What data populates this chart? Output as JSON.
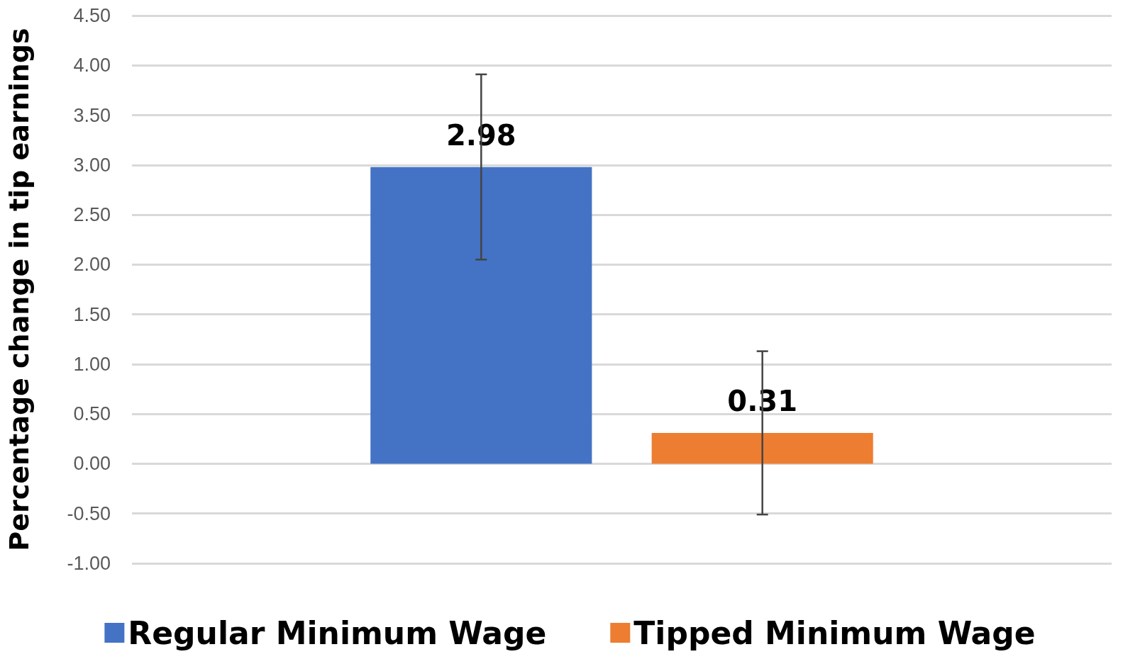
{
  "chart_data": {
    "type": "bar",
    "ylabel": "Percentage change in tip earnings",
    "categories": [
      null
    ],
    "series": [
      {
        "name": "Regular Minimum Wage",
        "color": "#4472c4",
        "values": [
          2.98
        ],
        "errors": [
          [
            2.05,
            3.91
          ]
        ]
      },
      {
        "name": "Tipped Minimum Wage",
        "color": "#ed7d31",
        "values": [
          0.31
        ],
        "errors": [
          [
            -0.51,
            1.13
          ]
        ]
      }
    ],
    "ylim": [
      -1,
      4.5
    ],
    "yticks": [
      {
        "value": -1,
        "label": "-1.00"
      },
      {
        "value": -0.5,
        "label": "-0.50"
      },
      {
        "value": 0,
        "label": "0.00"
      },
      {
        "value": 0.5,
        "label": "0.50"
      },
      {
        "value": 1,
        "label": "1.00"
      },
      {
        "value": 1.5,
        "label": "1.50"
      },
      {
        "value": 2,
        "label": "2.00"
      },
      {
        "value": 2.5,
        "label": "2.50"
      },
      {
        "value": 3,
        "label": "3.00"
      },
      {
        "value": 3.5,
        "label": "3.50"
      },
      {
        "value": 4,
        "label": "4.00"
      },
      {
        "value": 4.5,
        "label": "4.50"
      }
    ],
    "grid": "y",
    "legend": "bottom",
    "data_labels": true
  }
}
